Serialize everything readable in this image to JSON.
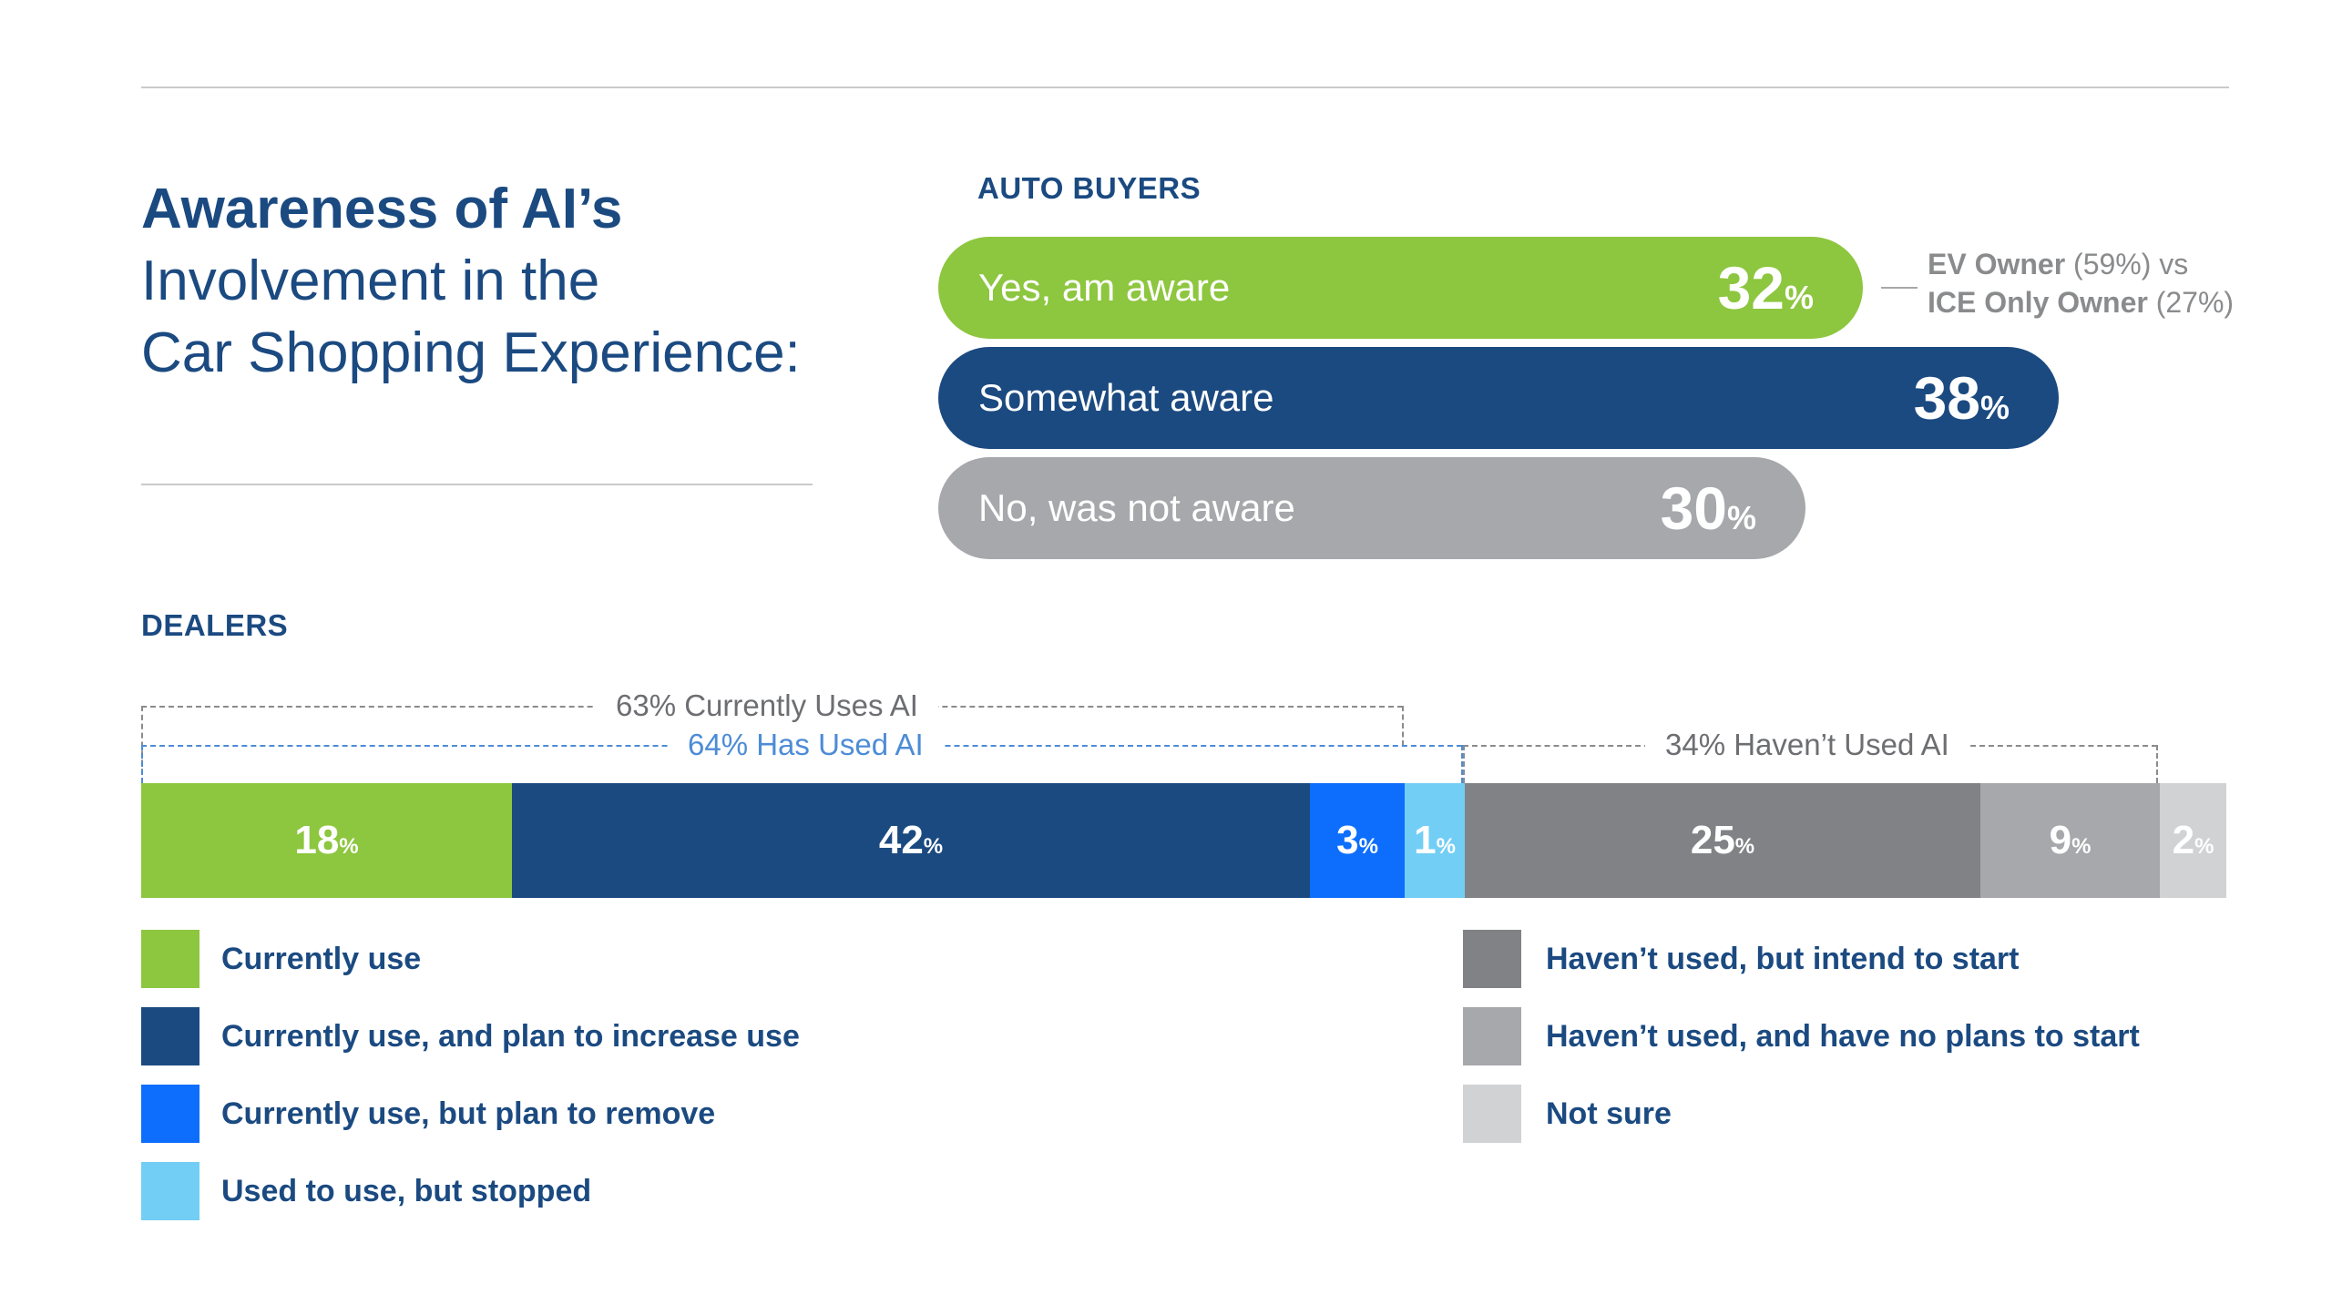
{
  "title": {
    "line1": "Awareness of AI’s",
    "line2": "Involvement in the",
    "line3": "Car Shopping Experience:"
  },
  "colors": {
    "navy": "#1b4a81",
    "green": "#8dc63f",
    "gray_pill": "#a6a8ab",
    "bright_blue": "#0d6efd",
    "light_blue": "#72cef5",
    "dark_gray": "#808285",
    "mid_gray": "#a6a8ab",
    "light_gray": "#d1d2d4"
  },
  "chart_data": [
    {
      "type": "bar",
      "title": "AUTO BUYERS",
      "categories": [
        "Yes, am aware",
        "Somewhat aware",
        "No, was not aware"
      ],
      "values": [
        32,
        38,
        30
      ],
      "unit": "%",
      "annotation": {
        "line1_bold": "EV Owner",
        "line1_rest": "(59%) vs",
        "line2_bold": "ICE Only Owner",
        "line2_rest": "(27%)"
      }
    },
    {
      "type": "bar",
      "title": "DEALERS",
      "stacked": true,
      "categories": [
        "Currently use",
        "Currently use, and plan to increase use",
        "Currently use, but plan to remove",
        "Used to use, but stopped",
        "Haven’t used, but intend to start",
        "Haven’t used, and have no plans to start",
        "Not sure"
      ],
      "values": [
        18,
        42,
        3,
        1,
        25,
        9,
        2
      ],
      "unit": "%",
      "brackets": {
        "currently_uses": "63% Currently Uses AI",
        "has_used": "64% Has Used AI",
        "havent_used": "34% Haven’t Used AI"
      }
    }
  ]
}
